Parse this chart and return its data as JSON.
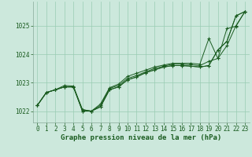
{
  "title": "Graphe pression niveau de la mer (hPa)",
  "background_color": "#cce8dc",
  "grid_color": "#99ccb3",
  "line_color": "#1a5c20",
  "marker_color": "#1a5c20",
  "xlim": [
    -0.5,
    23.5
  ],
  "ylim": [
    1021.6,
    1025.85
  ],
  "yticks": [
    1022,
    1023,
    1024,
    1025
  ],
  "xticks": [
    0,
    1,
    2,
    3,
    4,
    5,
    6,
    7,
    8,
    9,
    10,
    11,
    12,
    13,
    14,
    15,
    16,
    17,
    18,
    19,
    20,
    21,
    22,
    23
  ],
  "series": [
    [
      1022.2,
      1022.65,
      1022.75,
      1022.85,
      1022.85,
      1022.0,
      1022.0,
      1022.15,
      1022.75,
      1022.85,
      1023.1,
      1023.2,
      1023.35,
      1023.45,
      1023.55,
      1023.6,
      1023.6,
      1023.58,
      1023.55,
      1023.6,
      1024.15,
      1024.45,
      1025.35,
      1025.5
    ],
    [
      1022.2,
      1022.65,
      1022.75,
      1022.85,
      1022.85,
      1022.0,
      1022.0,
      1022.15,
      1022.75,
      1022.85,
      1023.1,
      1023.2,
      1023.35,
      1023.45,
      1023.55,
      1023.6,
      1023.6,
      1023.58,
      1023.55,
      1023.6,
      1024.15,
      1024.45,
      1025.35,
      1025.5
    ],
    [
      1022.2,
      1022.65,
      1022.75,
      1022.85,
      1022.85,
      1022.05,
      1022.0,
      1022.2,
      1022.8,
      1022.9,
      1023.15,
      1023.25,
      1023.38,
      1023.5,
      1023.58,
      1023.65,
      1023.65,
      1023.63,
      1023.6,
      1023.75,
      1023.85,
      1024.3,
      1025.0,
      1025.5
    ],
    [
      1022.2,
      1022.65,
      1022.75,
      1022.9,
      1022.88,
      1022.05,
      1022.0,
      1022.25,
      1022.82,
      1022.95,
      1023.22,
      1023.33,
      1023.44,
      1023.55,
      1023.62,
      1023.68,
      1023.68,
      1023.68,
      1023.65,
      1024.55,
      1023.85,
      1024.9,
      1024.98,
      1025.5
    ]
  ],
  "tick_fontsize": 5.5,
  "label_fontsize": 6.5,
  "label_color": "#1a5c20"
}
